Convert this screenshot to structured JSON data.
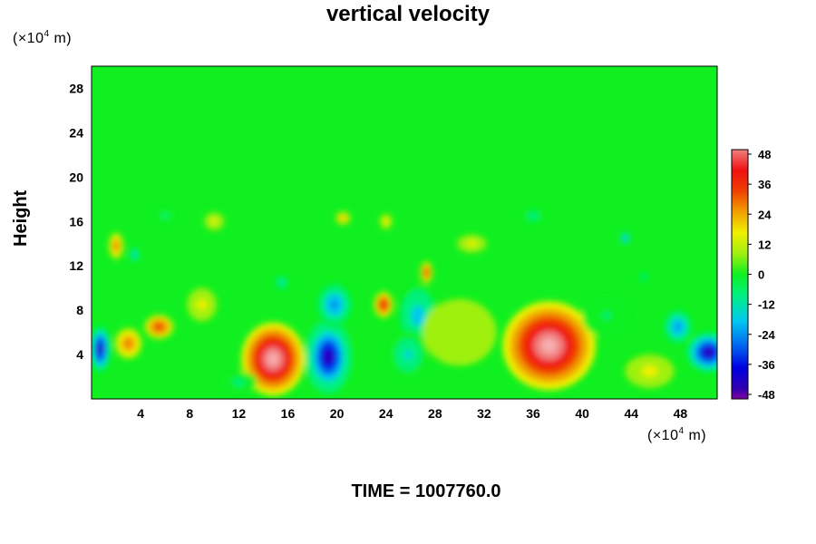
{
  "chart_data": {
    "type": "heatmap",
    "title": "vertical velocity",
    "xlabel": "",
    "ylabel": "Height",
    "x_unit": {
      "prefix": "(×10",
      "exp": "4",
      "suffix": " m)"
    },
    "y_unit": {
      "prefix": "(×10",
      "exp": "4",
      "suffix": " m)"
    },
    "footer": "TIME = 1007760.0",
    "xlim": [
      0,
      51
    ],
    "ylim": [
      0,
      30
    ],
    "x_ticks": [
      4,
      8,
      12,
      16,
      20,
      24,
      28,
      32,
      36,
      40,
      44,
      48
    ],
    "y_ticks": [
      4,
      8,
      12,
      16,
      20,
      24,
      28
    ],
    "colorbar": {
      "range": [
        -48,
        48
      ],
      "ticks": [
        48,
        36,
        24,
        12,
        0,
        -12,
        -24,
        -36,
        -48
      ],
      "stops": [
        {
          "v": -52,
          "color": "#8000a0"
        },
        {
          "v": -44,
          "color": "#3000b0"
        },
        {
          "v": -36,
          "color": "#0000e0"
        },
        {
          "v": -28,
          "color": "#0060f0"
        },
        {
          "v": -18,
          "color": "#00c8f0"
        },
        {
          "v": -8,
          "color": "#00f080"
        },
        {
          "v": 0,
          "color": "#10f020"
        },
        {
          "v": 8,
          "color": "#a0f010"
        },
        {
          "v": 16,
          "color": "#f0f000"
        },
        {
          "v": 24,
          "color": "#f0a000"
        },
        {
          "v": 32,
          "color": "#f04000"
        },
        {
          "v": 40,
          "color": "#f01010"
        },
        {
          "v": 48,
          "color": "#f08080"
        },
        {
          "v": 52,
          "color": "#f8b0b0"
        }
      ]
    },
    "features": [
      {
        "x": 14.8,
        "y": 3.6,
        "rx": 2.6,
        "ry": 3.3,
        "value": 50
      },
      {
        "x": 37.3,
        "y": 4.8,
        "rx": 3.8,
        "ry": 4.0,
        "value": 52
      },
      {
        "x": 5.5,
        "y": 6.5,
        "rx": 1.2,
        "ry": 1.1,
        "value": 34
      },
      {
        "x": 3.0,
        "y": 5.0,
        "rx": 1.1,
        "ry": 1.4,
        "value": 28
      },
      {
        "x": 23.8,
        "y": 8.5,
        "rx": 0.8,
        "ry": 1.2,
        "value": 38
      },
      {
        "x": 27.3,
        "y": 11.4,
        "rx": 0.5,
        "ry": 1.0,
        "value": 36
      },
      {
        "x": 2.0,
        "y": 13.8,
        "rx": 0.6,
        "ry": 1.2,
        "value": 26
      },
      {
        "x": 19.3,
        "y": 3.8,
        "rx": 1.9,
        "ry": 3.3,
        "value": -48
      },
      {
        "x": 19.8,
        "y": 8.5,
        "rx": 1.5,
        "ry": 2.0,
        "value": -30
      },
      {
        "x": 0.7,
        "y": 4.5,
        "rx": 0.9,
        "ry": 2.3,
        "value": -46
      },
      {
        "x": 50.3,
        "y": 4.2,
        "rx": 2.0,
        "ry": 2.0,
        "value": -46
      },
      {
        "x": 47.8,
        "y": 6.5,
        "rx": 1.2,
        "ry": 1.6,
        "value": -30
      },
      {
        "x": 26.6,
        "y": 7.5,
        "rx": 1.6,
        "ry": 2.8,
        "value": -26
      },
      {
        "x": 25.8,
        "y": 4.0,
        "rx": 1.6,
        "ry": 2.2,
        "value": -20
      },
      {
        "x": 3.5,
        "y": 13.0,
        "rx": 0.4,
        "ry": 0.7,
        "value": -24
      },
      {
        "x": 15.5,
        "y": 10.5,
        "rx": 0.6,
        "ry": 0.7,
        "value": -20
      },
      {
        "x": 20.5,
        "y": 16.3,
        "rx": 0.6,
        "ry": 0.6,
        "value": 20
      },
      {
        "x": 24.0,
        "y": 16.0,
        "rx": 0.5,
        "ry": 0.7,
        "value": 16
      },
      {
        "x": 10.0,
        "y": 16.0,
        "rx": 0.8,
        "ry": 0.8,
        "value": 12
      },
      {
        "x": 43.5,
        "y": 14.5,
        "rx": 0.4,
        "ry": 0.6,
        "value": -28
      },
      {
        "x": 45.0,
        "y": 11.0,
        "rx": 0.4,
        "ry": 0.6,
        "value": -14
      },
      {
        "x": 9.0,
        "y": 8.5,
        "rx": 1.2,
        "ry": 1.5,
        "value": 10
      },
      {
        "x": 45.5,
        "y": 2.5,
        "rx": 2.0,
        "ry": 1.5,
        "value": 12
      },
      {
        "x": 12.0,
        "y": 1.5,
        "rx": 1.5,
        "ry": 1.0,
        "value": -10
      },
      {
        "x": 30.0,
        "y": 6.0,
        "rx": 3.0,
        "ry": 3.0,
        "value": 8
      },
      {
        "x": 42.0,
        "y": 7.5,
        "rx": 2.0,
        "ry": 2.0,
        "value": -8
      },
      {
        "x": 6.0,
        "y": 16.5,
        "rx": 1.0,
        "ry": 0.7,
        "value": -10
      },
      {
        "x": 31.0,
        "y": 14.0,
        "rx": 1.2,
        "ry": 0.8,
        "value": 10
      },
      {
        "x": 36.0,
        "y": 16.5,
        "rx": 1.0,
        "ry": 0.7,
        "value": -12
      }
    ]
  }
}
